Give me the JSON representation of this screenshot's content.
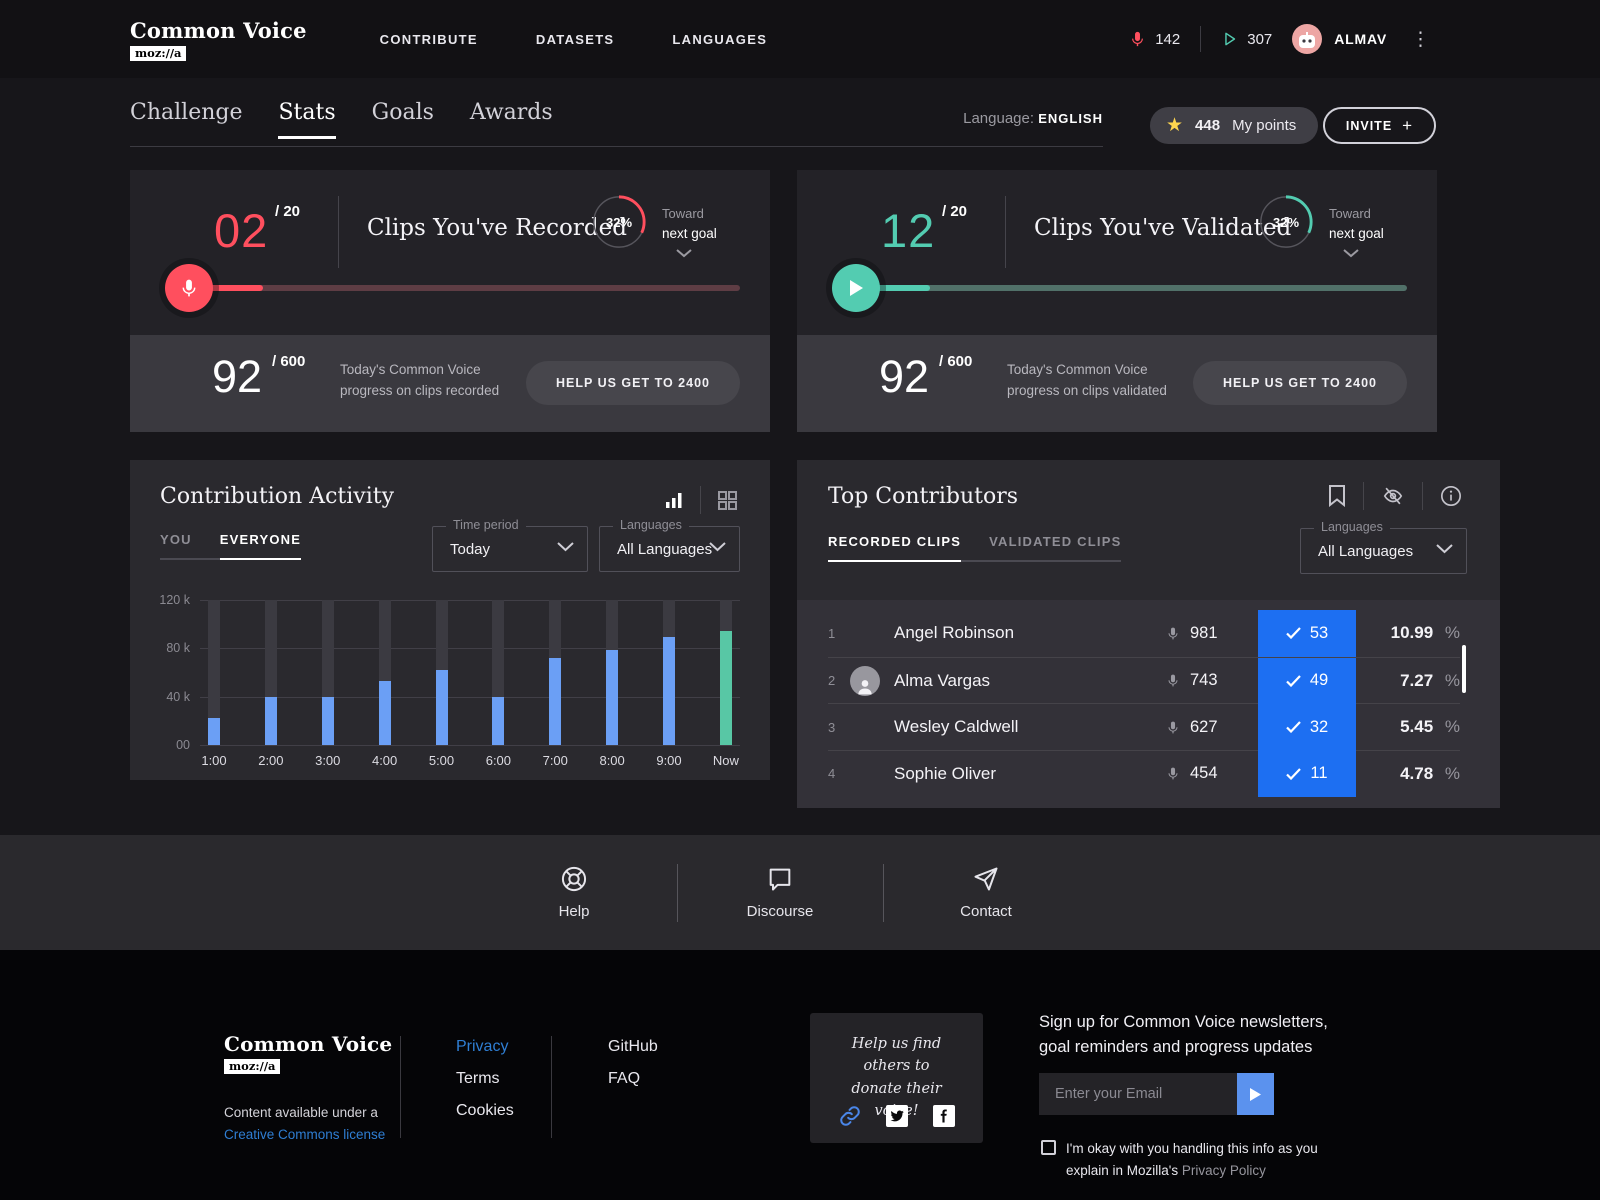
{
  "colors": {
    "red": "#ff4f5e",
    "teal": "#53ccb1",
    "bar_blue": "#6b9ff5",
    "bar_green": "#58c7a5",
    "cell_blue": "#1d6ff2",
    "link_blue": "#2f7ed3",
    "star_yellow": "#ffd64f"
  },
  "nav": {
    "brand": "Common Voice",
    "brand_badge": "moz://a",
    "items": [
      {
        "label": "CONTRIBUTE"
      },
      {
        "label": "DATASETS"
      },
      {
        "label": "LANGUAGES"
      }
    ],
    "recorded_count": "142",
    "validated_count": "307",
    "username": "ALMAV",
    "menu_glyph": "⋮"
  },
  "tabs": {
    "items": [
      {
        "label": "Challenge"
      },
      {
        "label": "Stats"
      },
      {
        "label": "Goals"
      },
      {
        "label": "Awards"
      }
    ],
    "language_label": "Language:",
    "language_value": "ENGLISH",
    "points": "448",
    "points_label": "My points",
    "star_glyph": "★",
    "invite_label": "INVITE",
    "plus_glyph": "+"
  },
  "cards": {
    "recorded": {
      "value": "02",
      "total": "/ 20",
      "title": "Clips You've Recorded",
      "percent": "32%",
      "percent_num": 32,
      "toward_line1": "Toward",
      "toward_line2": "next goal",
      "bar_fill_pct": 17,
      "progress_value": "92",
      "progress_total": "/ 600",
      "progress_desc": "Today's Common Voice progress on clips recorded",
      "button": "HELP US GET TO 2400"
    },
    "validated": {
      "value": "12",
      "total": "/ 20",
      "title": "Clips You've Validated",
      "percent": "32%",
      "percent_num": 32,
      "toward_line1": "Toward",
      "toward_line2": "next goal",
      "bar_fill_pct": 17,
      "progress_value": "92",
      "progress_total": "/ 600",
      "progress_desc": "Today's Common Voice progress on clips validated",
      "button": "HELP US GET TO 2400"
    }
  },
  "activity": {
    "title": "Contribution Activity",
    "tabs": [
      {
        "label": "YOU"
      },
      {
        "label": "EVERYONE"
      }
    ],
    "time_label": "Time period",
    "time_value": "Today",
    "lang_label": "Languages",
    "lang_value": "All Languages"
  },
  "chart_data": {
    "type": "bar",
    "title": "Contribution Activity",
    "categories": [
      "1:00",
      "2:00",
      "3:00",
      "4:00",
      "5:00",
      "6:00",
      "7:00",
      "8:00",
      "9:00",
      "Now"
    ],
    "values": [
      22000,
      40000,
      40000,
      53000,
      62000,
      40000,
      72000,
      79000,
      89000,
      94000
    ],
    "xlabel": "",
    "ylabel": "",
    "ylim": [
      0,
      120000
    ],
    "yticks": [
      {
        "label": "120 k",
        "value": 120000
      },
      {
        "label": "80 k",
        "value": 80000
      },
      {
        "label": "40 k",
        "value": 40000
      },
      {
        "label": "00",
        "value": 0
      }
    ],
    "grid": true,
    "legend_position": "none",
    "bar_color": "#6b9ff5",
    "highlight_color": "#58c7a5",
    "highlight_index": 9
  },
  "contributors": {
    "title": "Top Contributors",
    "tabs": [
      {
        "label": "RECORDED CLIPS"
      },
      {
        "label": "VALIDATED CLIPS"
      }
    ],
    "lang_label": "Languages",
    "lang_value": "All Languages",
    "percent_suffix": "%",
    "rows": [
      {
        "rank": "1",
        "name": "Angel Robinson",
        "recorded": "981",
        "validated": "53",
        "percent": "10.99",
        "avatar_type": "photo"
      },
      {
        "rank": "2",
        "name": "Alma Vargas",
        "recorded": "743",
        "validated": "49",
        "percent": "7.27",
        "avatar_type": "icon"
      },
      {
        "rank": "3",
        "name": "Wesley Caldwell",
        "recorded": "627",
        "validated": "32",
        "percent": "5.45",
        "avatar_type": "photo"
      },
      {
        "rank": "4",
        "name": "Sophie Oliver",
        "recorded": "454",
        "validated": "11",
        "percent": "4.78",
        "avatar_type": "photo"
      }
    ]
  },
  "connect": {
    "help": "Help",
    "discourse": "Discourse",
    "contact": "Contact"
  },
  "footer": {
    "brand": "Common Voice",
    "brand_badge": "moz://a",
    "license_line": "Content available under a",
    "license_link": "Creative Commons license",
    "links_col1": [
      {
        "label": "Privacy",
        "blue": true
      },
      {
        "label": "Terms",
        "blue": false
      },
      {
        "label": "Cookies",
        "blue": false
      }
    ],
    "links_col2": [
      {
        "label": "GitHub",
        "blue": false
      },
      {
        "label": "FAQ",
        "blue": false
      }
    ],
    "social_title_line1": "Help us find others to",
    "social_title_line2": "donate their voice!",
    "news_line1": "Sign up for Common Voice newsletters,",
    "news_line2": "goal reminders and progress updates",
    "email_placeholder": "Enter your Email",
    "consent_line1": "I'm okay with you handling this info as you",
    "consent_line2": "explain in Mozilla's",
    "consent_link": "Privacy Policy"
  }
}
